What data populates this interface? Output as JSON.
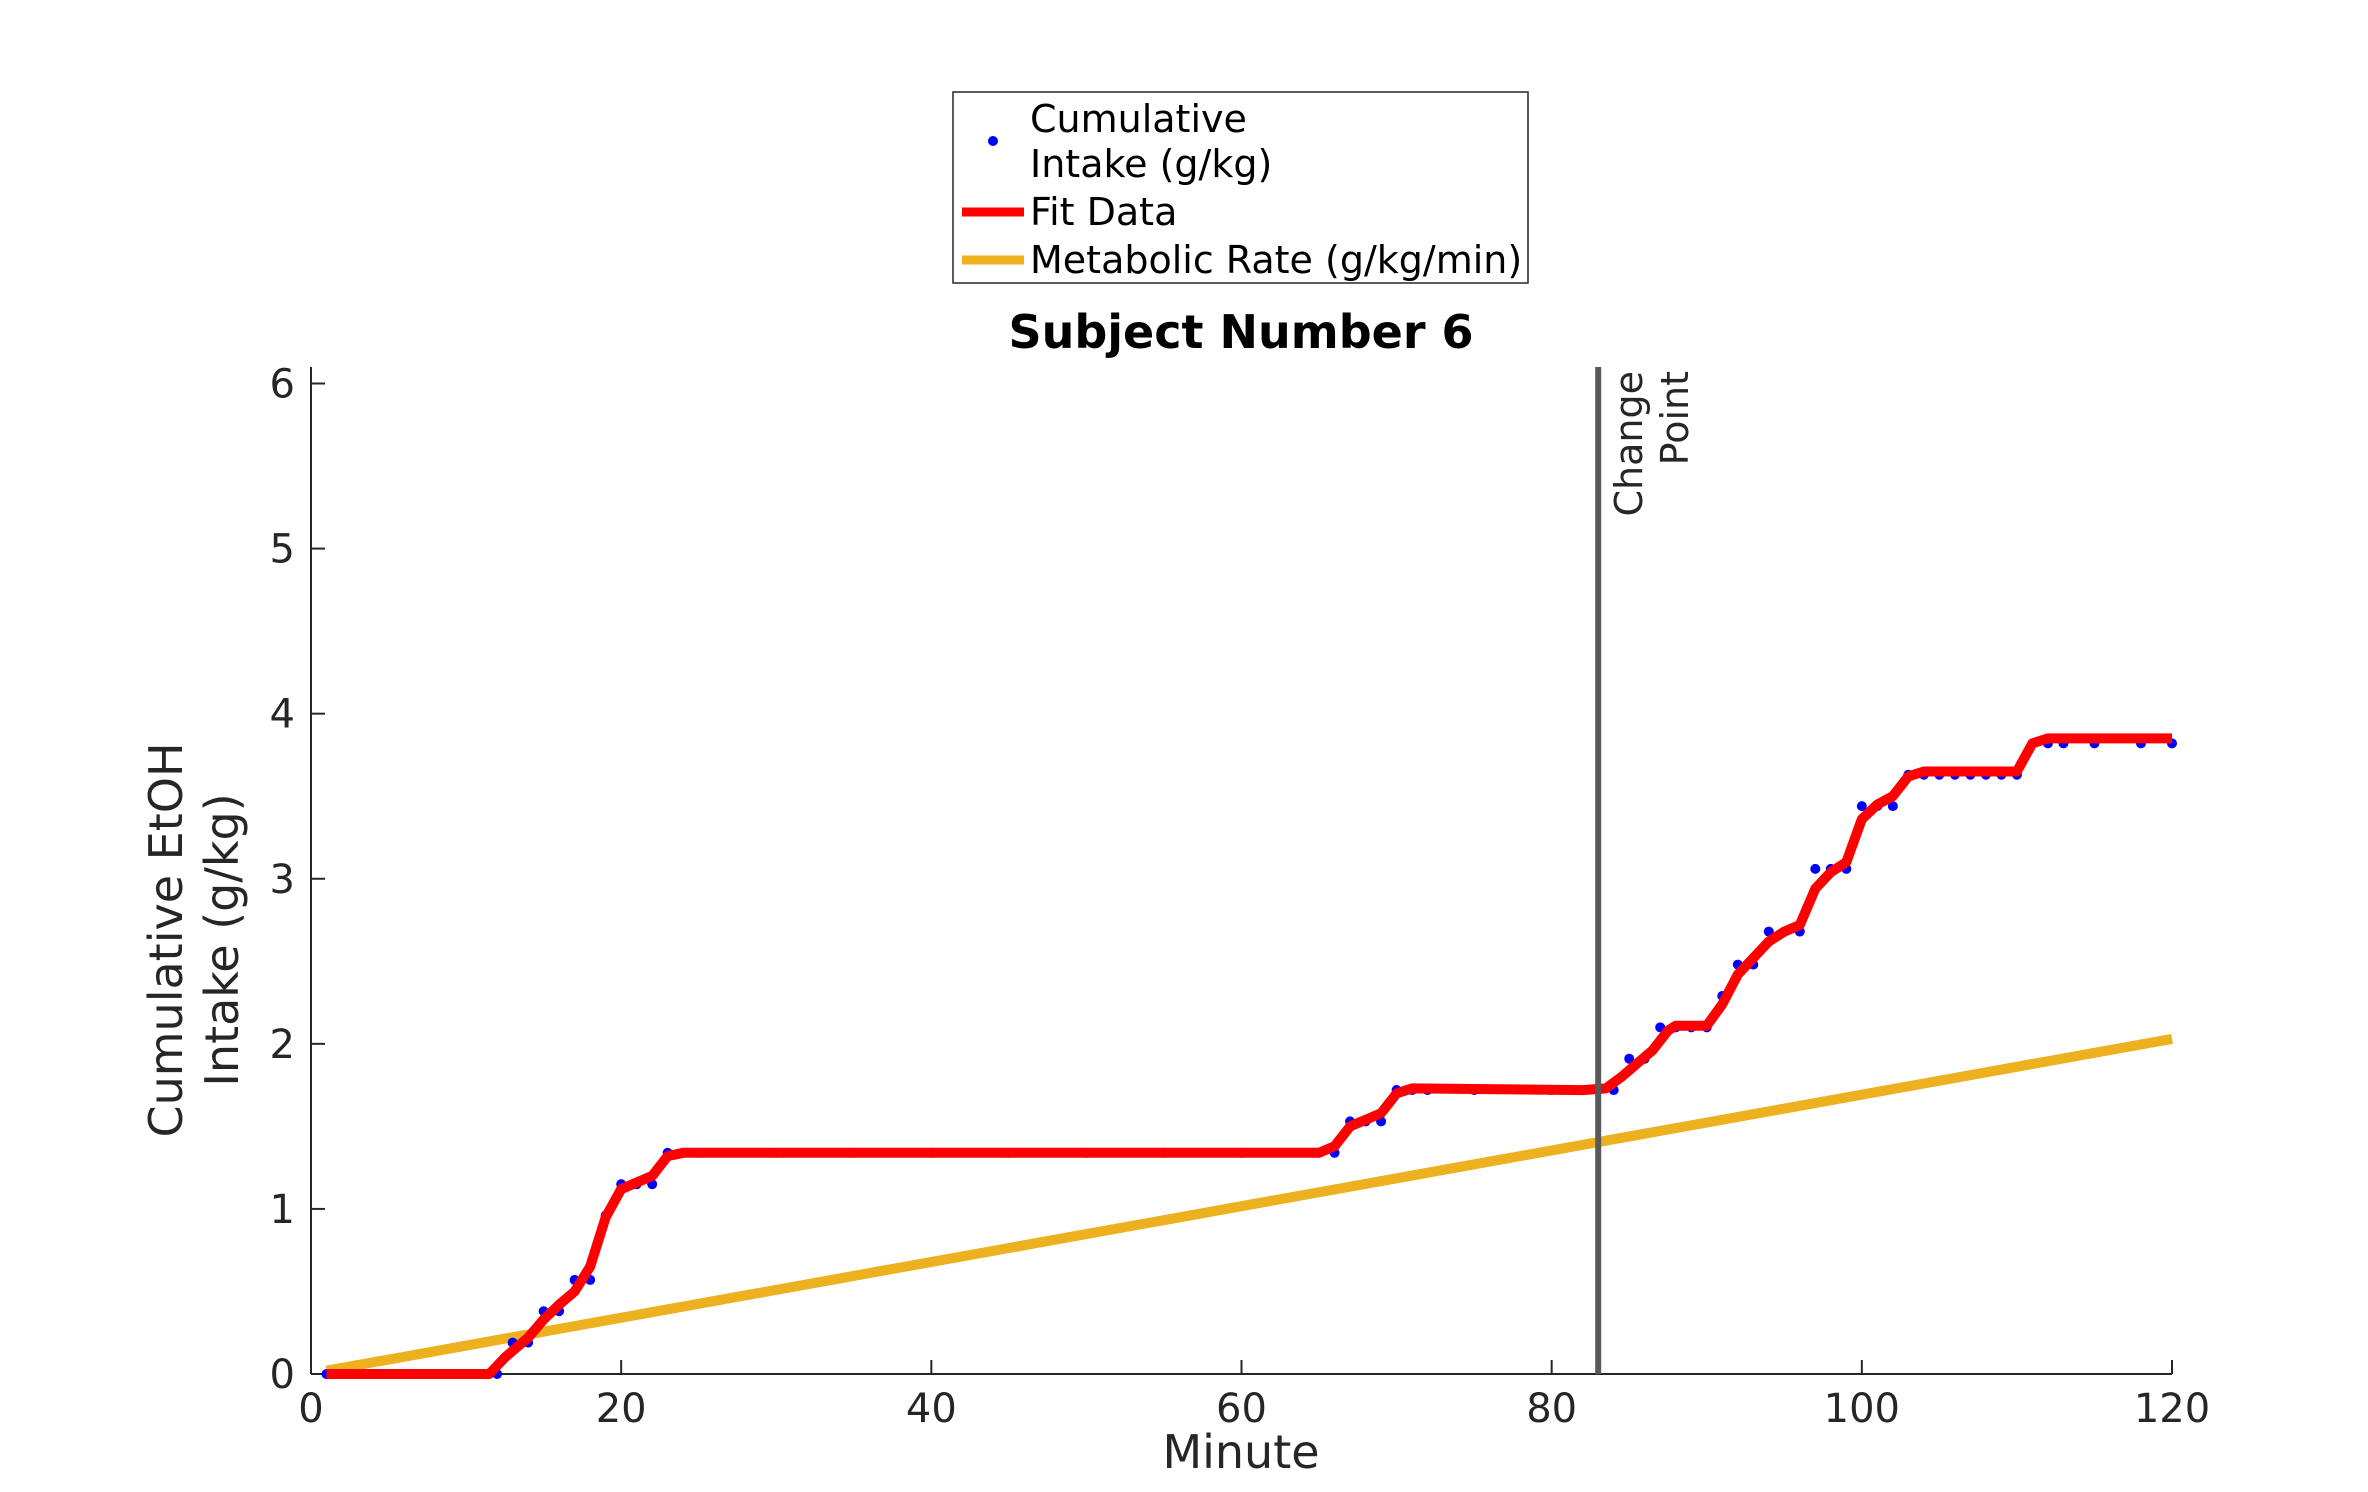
{
  "chart_data": {
    "type": "line",
    "title": "Subject Number 6",
    "xlabel": "Minute",
    "ylabel_lines": [
      "Cumulative EtOH",
      "Intake (g/kg)"
    ],
    "xlim": [
      0,
      120
    ],
    "ylim": [
      0,
      6.1
    ],
    "xticks": [
      0,
      20,
      40,
      60,
      80,
      100,
      120
    ],
    "yticks": [
      0,
      1,
      2,
      3,
      4,
      5,
      6
    ],
    "grid": false,
    "legend_position": "top-center",
    "legend": [
      {
        "lines": [
          "Cumulative",
          "Intake (g/kg)"
        ],
        "marker": "dot",
        "color": "#0000ff"
      },
      {
        "lines": [
          "Fit Data"
        ],
        "marker": "line",
        "color": "#ff0000"
      },
      {
        "lines": [
          "Metabolic Rate (g/kg/min)"
        ],
        "marker": "line",
        "color": "#edb120"
      }
    ],
    "annotation": {
      "lines": [
        "Change",
        "Point"
      ],
      "x": 83,
      "color": "#595959"
    },
    "series": [
      {
        "name": "Cumulative Intake (g/kg)",
        "style": "dots",
        "color": "#0000ff",
        "points": [
          [
            1,
            0
          ],
          [
            2,
            0
          ],
          [
            3,
            0
          ],
          [
            4,
            0
          ],
          [
            5,
            0
          ],
          [
            6,
            0
          ],
          [
            7,
            0
          ],
          [
            8,
            0
          ],
          [
            9,
            0
          ],
          [
            10,
            0
          ],
          [
            11,
            0
          ],
          [
            12,
            0
          ],
          [
            13,
            0.19
          ],
          [
            14,
            0.19
          ],
          [
            15,
            0.38
          ],
          [
            16,
            0.38
          ],
          [
            17,
            0.57
          ],
          [
            18,
            0.57
          ],
          [
            19,
            0.96
          ],
          [
            20,
            1.15
          ],
          [
            21,
            1.15
          ],
          [
            22,
            1.15
          ],
          [
            23,
            1.34
          ],
          [
            24,
            1.34
          ],
          [
            25,
            1.34
          ],
          [
            30,
            1.34
          ],
          [
            35,
            1.34
          ],
          [
            40,
            1.34
          ],
          [
            45,
            1.34
          ],
          [
            50,
            1.34
          ],
          [
            55,
            1.34
          ],
          [
            60,
            1.34
          ],
          [
            65,
            1.34
          ],
          [
            66,
            1.34
          ],
          [
            67,
            1.53
          ],
          [
            68,
            1.53
          ],
          [
            69,
            1.53
          ],
          [
            70,
            1.72
          ],
          [
            71,
            1.72
          ],
          [
            72,
            1.72
          ],
          [
            75,
            1.72
          ],
          [
            80,
            1.72
          ],
          [
            83,
            1.72
          ],
          [
            84,
            1.72
          ],
          [
            85,
            1.91
          ],
          [
            86,
            1.91
          ],
          [
            87,
            2.1
          ],
          [
            88,
            2.1
          ],
          [
            89,
            2.1
          ],
          [
            90,
            2.1
          ],
          [
            91,
            2.29
          ],
          [
            92,
            2.48
          ],
          [
            93,
            2.48
          ],
          [
            94,
            2.68
          ],
          [
            95,
            2.68
          ],
          [
            96,
            2.68
          ],
          [
            97,
            3.06
          ],
          [
            98,
            3.06
          ],
          [
            99,
            3.06
          ],
          [
            100,
            3.44
          ],
          [
            101,
            3.44
          ],
          [
            102,
            3.44
          ],
          [
            103,
            3.63
          ],
          [
            104,
            3.63
          ],
          [
            105,
            3.63
          ],
          [
            106,
            3.63
          ],
          [
            107,
            3.63
          ],
          [
            108,
            3.63
          ],
          [
            109,
            3.63
          ],
          [
            110,
            3.63
          ],
          [
            111,
            3.82
          ],
          [
            112,
            3.82
          ],
          [
            113,
            3.82
          ],
          [
            115,
            3.82
          ],
          [
            118,
            3.82
          ],
          [
            120,
            3.82
          ]
        ]
      },
      {
        "name": "Fit Data",
        "style": "line",
        "color": "#ff0000",
        "points": [
          [
            1,
            0
          ],
          [
            11.5,
            0
          ],
          [
            12.5,
            0.1
          ],
          [
            14,
            0.22
          ],
          [
            15,
            0.33
          ],
          [
            16,
            0.42
          ],
          [
            17,
            0.5
          ],
          [
            18,
            0.65
          ],
          [
            19,
            0.95
          ],
          [
            20,
            1.12
          ],
          [
            21,
            1.16
          ],
          [
            22,
            1.2
          ],
          [
            23,
            1.32
          ],
          [
            24,
            1.34
          ],
          [
            65,
            1.34
          ],
          [
            66,
            1.38
          ],
          [
            67,
            1.5
          ],
          [
            68,
            1.54
          ],
          [
            69,
            1.58
          ],
          [
            70,
            1.7
          ],
          [
            71,
            1.73
          ],
          [
            82,
            1.72
          ],
          [
            83.5,
            1.73
          ],
          [
            84.5,
            1.8
          ],
          [
            85.5,
            1.88
          ],
          [
            86.5,
            1.96
          ],
          [
            87.5,
            2.08
          ],
          [
            88,
            2.11
          ],
          [
            90,
            2.11
          ],
          [
            91,
            2.24
          ],
          [
            92,
            2.42
          ],
          [
            93,
            2.52
          ],
          [
            94,
            2.62
          ],
          [
            95,
            2.68
          ],
          [
            96,
            2.72
          ],
          [
            97,
            2.94
          ],
          [
            98,
            3.04
          ],
          [
            99,
            3.1
          ],
          [
            100,
            3.36
          ],
          [
            101,
            3.45
          ],
          [
            102,
            3.5
          ],
          [
            103,
            3.62
          ],
          [
            104,
            3.65
          ],
          [
            110,
            3.65
          ],
          [
            111,
            3.82
          ],
          [
            112,
            3.85
          ],
          [
            120,
            3.85
          ]
        ]
      },
      {
        "name": "Metabolic Rate (g/kg/min)",
        "style": "line",
        "color": "#edb120",
        "points": [
          [
            1,
            0.02
          ],
          [
            120,
            2.03
          ]
        ]
      }
    ]
  }
}
